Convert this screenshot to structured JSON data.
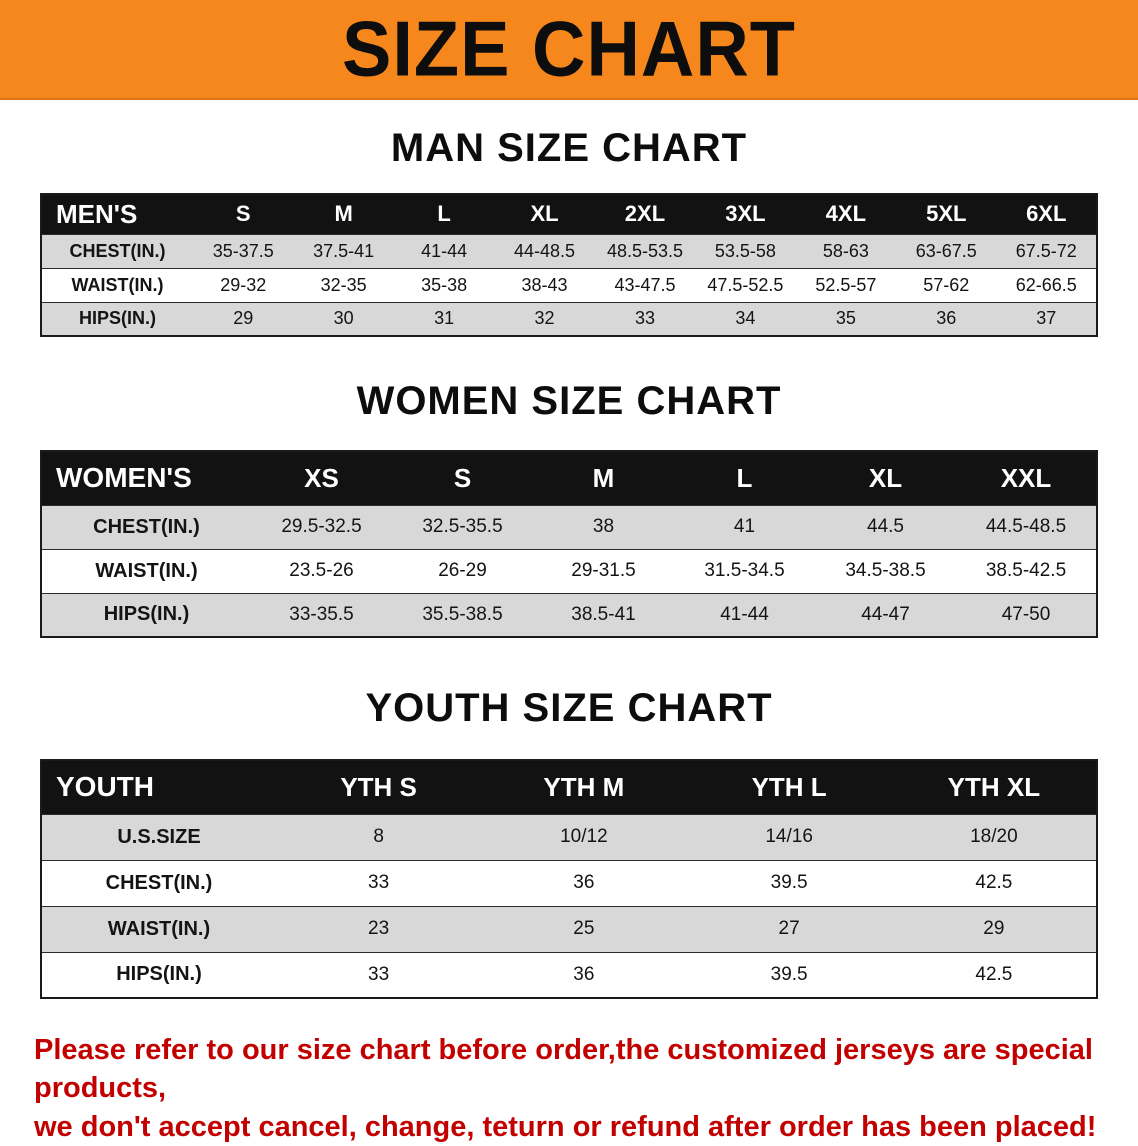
{
  "banner": {
    "title": "SIZE CHART"
  },
  "colors": {
    "banner_bg": "#f6871d",
    "table_header_bg": "#121212",
    "row_gray": "#d8d8d8",
    "row_white": "#ffffff",
    "disclaimer_red": "#c20000"
  },
  "sections": [
    {
      "id": "men",
      "heading": "MAN SIZE CHART",
      "table": {
        "header": [
          "MEN'S",
          "S",
          "M",
          "L",
          "XL",
          "2XL",
          "3XL",
          "4XL",
          "5XL",
          "6XL"
        ],
        "rows": [
          [
            "CHEST(IN.)",
            "35-37.5",
            "37.5-41",
            "41-44",
            "44-48.5",
            "48.5-53.5",
            "53.5-58",
            "58-63",
            "63-67.5",
            "67.5-72"
          ],
          [
            "WAIST(IN.)",
            "29-32",
            "32-35",
            "35-38",
            "38-43",
            "43-47.5",
            "47.5-52.5",
            "52.5-57",
            "57-62",
            "62-66.5"
          ],
          [
            "HIPS(IN.)",
            "29",
            "30",
            "31",
            "32",
            "33",
            "34",
            "35",
            "36",
            "37"
          ]
        ],
        "shading": [
          "gray",
          "white",
          "gray"
        ]
      }
    },
    {
      "id": "women",
      "heading": "WOMEN SIZE CHART",
      "table": {
        "header": [
          "WOMEN'S",
          "XS",
          "S",
          "M",
          "L",
          "XL",
          "XXL"
        ],
        "rows": [
          [
            "CHEST(IN.)",
            "29.5-32.5",
            "32.5-35.5",
            "38",
            "41",
            "44.5",
            "44.5-48.5"
          ],
          [
            "WAIST(IN.)",
            "23.5-26",
            "26-29",
            "29-31.5",
            "31.5-34.5",
            "34.5-38.5",
            "38.5-42.5"
          ],
          [
            "HIPS(IN.)",
            "33-35.5",
            "35.5-38.5",
            "38.5-41",
            "41-44",
            "44-47",
            "47-50"
          ]
        ],
        "shading": [
          "gray",
          "white",
          "gray"
        ]
      }
    },
    {
      "id": "youth",
      "heading": "YOUTH SIZE CHART",
      "table": {
        "header": [
          "YOUTH",
          "YTH S",
          "YTH M",
          "YTH L",
          "YTH XL"
        ],
        "rows": [
          [
            "U.S.SIZE",
            "8",
            "10/12",
            "14/16",
            "18/20"
          ],
          [
            "CHEST(IN.)",
            "33",
            "36",
            "39.5",
            "42.5"
          ],
          [
            "WAIST(IN.)",
            "23",
            "25",
            "27",
            "29"
          ],
          [
            "HIPS(IN.)",
            "33",
            "36",
            "39.5",
            "42.5"
          ]
        ],
        "shading": [
          "gray",
          "white",
          "gray",
          "white"
        ]
      }
    }
  ],
  "disclaimer": {
    "line1": "Please refer to our size chart before order,the customized jerseys are special products,",
    "line2": "we don't accept cancel, change, teturn or refund after order has been placed!"
  }
}
